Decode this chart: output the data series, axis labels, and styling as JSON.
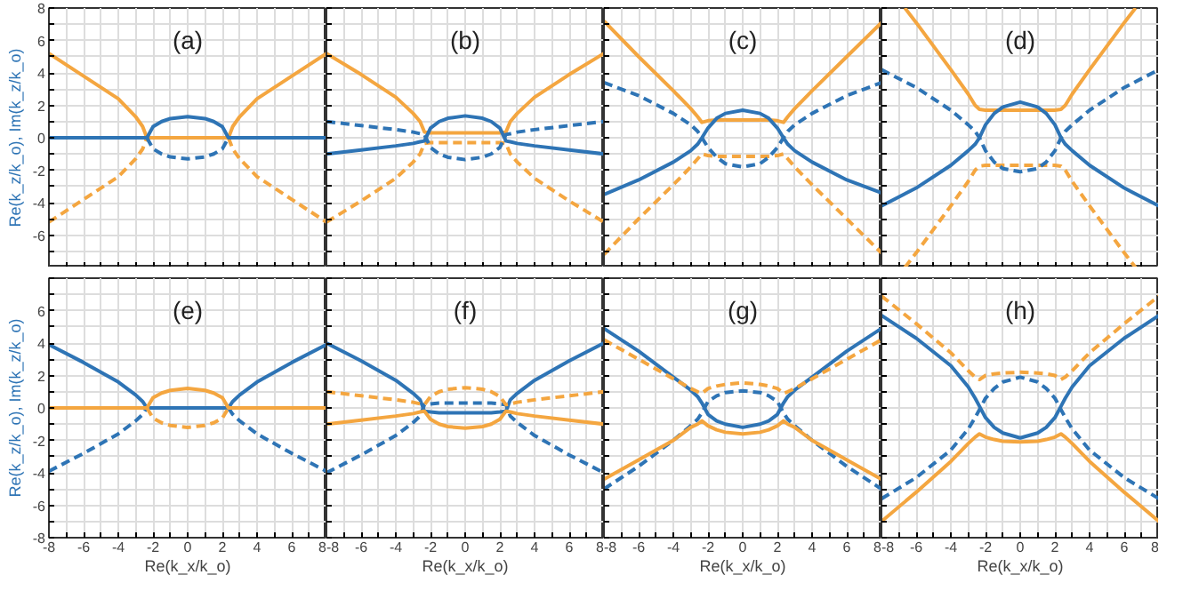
{
  "chart_data": [
    {
      "type": "line",
      "title": "(a)",
      "ylabel": "Re(k_z/k_o), Im(k_z/k_o)",
      "tick_labels": "y",
      "grid": true,
      "xlim": [
        -8,
        8
      ],
      "ylim": [
        -8,
        8
      ],
      "xticks": [
        -8,
        {
          "value": -7,
          "label": null
        },
        -6,
        {
          "value": -5,
          "label": null
        },
        -4,
        {
          "value": -3,
          "label": null
        },
        -2,
        {
          "value": -1,
          "label": null
        },
        0,
        {
          "value": 1,
          "label": null
        },
        2,
        {
          "value": 3,
          "label": null
        },
        4,
        {
          "value": 5,
          "label": null
        },
        6,
        {
          "value": 7,
          "label": null
        },
        8
      ],
      "yticks": [
        {
          "value": -8,
          "label": null
        },
        {
          "value": -7,
          "label": null
        },
        -6,
        {
          "value": -5,
          "label": null
        },
        -4,
        {
          "value": -3,
          "label": null
        },
        -2,
        {
          "value": -1,
          "label": null
        },
        0,
        {
          "value": 1,
          "label": null
        },
        2,
        {
          "value": 3,
          "label": null
        },
        4,
        {
          "value": 5,
          "label": null
        },
        6,
        {
          "value": 7,
          "label": null
        },
        8
      ],
      "x": [
        -8,
        -6,
        -4,
        -3,
        -2.6,
        -2.35,
        -2,
        -1.5,
        -1,
        0,
        1,
        1.5,
        2,
        2.35,
        2.6,
        3,
        4,
        6,
        8
      ],
      "series": [
        {
          "color": "#f4a640",
          "line_style": "solid",
          "values": [
            5.2,
            3.8,
            2.4,
            1.3,
            0.7,
            0,
            0,
            0,
            0,
            0,
            0,
            0,
            0,
            0,
            0.7,
            1.3,
            2.4,
            3.8,
            5.2
          ]
        },
        {
          "color": "#f4a640",
          "line_style": "dashed",
          "values": [
            -5.2,
            -3.8,
            -2.4,
            -1.3,
            -0.7,
            0,
            null,
            null,
            null,
            null,
            null,
            null,
            null,
            0,
            -0.7,
            -1.3,
            -2.4,
            -3.8,
            -5.2
          ]
        },
        {
          "color": "#2e74b5",
          "line_style": "solid",
          "values": [
            0,
            0,
            0,
            0,
            0,
            0,
            0.68,
            1.0,
            1.18,
            1.3,
            1.18,
            1.0,
            0.68,
            0,
            0,
            0,
            0,
            0,
            0
          ]
        },
        {
          "color": "#2e74b5",
          "line_style": "dashed",
          "values": [
            null,
            null,
            null,
            null,
            null,
            0,
            -0.68,
            -1.0,
            -1.18,
            -1.3,
            -1.18,
            -1.0,
            -0.68,
            0,
            null,
            null,
            null,
            null,
            null
          ]
        }
      ]
    },
    {
      "type": "line",
      "title": "(b)",
      "tick_labels": false,
      "grid": true,
      "xlim": [
        -8,
        8
      ],
      "ylim": [
        -8,
        8
      ],
      "xticks": [
        -8,
        {
          "value": -7,
          "label": null
        },
        -6,
        {
          "value": -5,
          "label": null
        },
        -4,
        {
          "value": -3,
          "label": null
        },
        -2,
        {
          "value": -1,
          "label": null
        },
        0,
        {
          "value": 1,
          "label": null
        },
        2,
        {
          "value": 3,
          "label": null
        },
        4,
        {
          "value": 5,
          "label": null
        },
        6,
        {
          "value": 7,
          "label": null
        },
        8
      ],
      "yticks": [
        -8,
        {
          "value": -7,
          "label": null
        },
        -6,
        {
          "value": -5,
          "label": null
        },
        -4,
        {
          "value": -3,
          "label": null
        },
        -2,
        {
          "value": -1,
          "label": null
        },
        0,
        {
          "value": 1,
          "label": null
        },
        2,
        {
          "value": 3,
          "label": null
        },
        4,
        {
          "value": 5,
          "label": null
        },
        6,
        {
          "value": 7,
          "label": null
        },
        8
      ],
      "x": [
        -8,
        -6,
        -4,
        -3,
        -2.6,
        -2.35,
        -2,
        -1.5,
        -1,
        0,
        1,
        1.5,
        2,
        2.35,
        2.6,
        3,
        4,
        6,
        8
      ],
      "series": [
        {
          "color": "#f4a640",
          "line_style": "solid",
          "values": [
            5.2,
            3.9,
            2.5,
            1.5,
            1.0,
            0.35,
            0.3,
            0.3,
            0.3,
            0.3,
            0.3,
            0.3,
            0.3,
            0.35,
            1.0,
            1.5,
            2.5,
            3.9,
            5.2
          ]
        },
        {
          "color": "#f4a640",
          "line_style": "dashed",
          "values": [
            -5.2,
            -3.9,
            -2.5,
            -1.5,
            -1.0,
            -0.35,
            -0.3,
            -0.3,
            -0.3,
            -0.3,
            -0.3,
            -0.3,
            -0.3,
            -0.35,
            -1.0,
            -1.5,
            -2.5,
            -3.9,
            -5.2
          ]
        },
        {
          "color": "#2e74b5",
          "line_style": "solid",
          "values": [
            -1.0,
            -0.75,
            -0.5,
            -0.35,
            -0.25,
            -0.2,
            0.6,
            1.0,
            1.2,
            1.35,
            1.2,
            1.0,
            0.6,
            -0.2,
            -0.25,
            -0.35,
            -0.5,
            -0.75,
            -1.0
          ]
        },
        {
          "color": "#2e74b5",
          "line_style": "dashed",
          "values": [
            1.0,
            0.75,
            0.5,
            0.35,
            0.25,
            0.2,
            -0.6,
            -1.0,
            -1.2,
            -1.35,
            -1.2,
            -1.0,
            -0.6,
            0.2,
            0.25,
            0.35,
            0.5,
            0.75,
            1.0
          ]
        }
      ]
    },
    {
      "type": "line",
      "title": "(c)",
      "tick_labels": false,
      "grid": true,
      "xlim": [
        -8,
        8
      ],
      "ylim": [
        -8,
        8
      ],
      "xticks": [
        -8,
        {
          "value": -7,
          "label": null
        },
        -6,
        {
          "value": -5,
          "label": null
        },
        -4,
        {
          "value": -3,
          "label": null
        },
        -2,
        {
          "value": -1,
          "label": null
        },
        0,
        {
          "value": 1,
          "label": null
        },
        2,
        {
          "value": 3,
          "label": null
        },
        4,
        {
          "value": 5,
          "label": null
        },
        6,
        {
          "value": 7,
          "label": null
        },
        8
      ],
      "yticks": [
        -8,
        {
          "value": -7,
          "label": null
        },
        -6,
        {
          "value": -5,
          "label": null
        },
        -4,
        {
          "value": -3,
          "label": null
        },
        -2,
        {
          "value": -1,
          "label": null
        },
        0,
        {
          "value": 1,
          "label": null
        },
        2,
        {
          "value": 3,
          "label": null
        },
        4,
        {
          "value": 5,
          "label": null
        },
        6,
        {
          "value": 7,
          "label": null
        },
        8
      ],
      "x": [
        -8,
        -6,
        -4,
        -3,
        -2.6,
        -2.35,
        -2,
        -1.5,
        -1,
        0,
        1,
        1.5,
        2,
        2.35,
        2.6,
        3,
        4,
        6,
        8
      ],
      "series": [
        {
          "color": "#f4a640",
          "line_style": "solid",
          "values": [
            7.2,
            5.0,
            2.9,
            1.8,
            1.3,
            0.95,
            1.05,
            1.1,
            1.1,
            1.1,
            1.1,
            1.1,
            1.05,
            0.95,
            1.3,
            1.8,
            2.9,
            5.0,
            7.1
          ]
        },
        {
          "color": "#f4a640",
          "line_style": "dashed",
          "values": [
            -7.2,
            -5.0,
            -2.9,
            -1.8,
            -1.3,
            -1.0,
            -1.1,
            -1.15,
            -1.15,
            -1.15,
            -1.15,
            -1.15,
            -1.1,
            -1.0,
            -1.3,
            -1.8,
            -2.9,
            -5.0,
            -7.1
          ]
        },
        {
          "color": "#2e74b5",
          "line_style": "solid",
          "values": [
            -3.5,
            -2.6,
            -1.5,
            -0.8,
            -0.4,
            0,
            0.6,
            1.2,
            1.5,
            1.7,
            1.5,
            1.2,
            0.6,
            0,
            -0.4,
            -0.8,
            -1.5,
            -2.6,
            -3.4
          ]
        },
        {
          "color": "#2e74b5",
          "line_style": "dashed",
          "values": [
            3.4,
            2.6,
            1.5,
            0.8,
            0.4,
            0,
            -0.6,
            -1.2,
            -1.6,
            -1.8,
            -1.6,
            -1.2,
            -0.6,
            0,
            0.4,
            0.8,
            1.5,
            2.6,
            3.4
          ]
        }
      ]
    },
    {
      "type": "line",
      "title": "(d)",
      "tick_labels": false,
      "grid": true,
      "xlim": [
        -8,
        8
      ],
      "ylim": [
        -8,
        8
      ],
      "xticks": [
        -8,
        {
          "value": -7,
          "label": null
        },
        -6,
        {
          "value": -5,
          "label": null
        },
        -4,
        {
          "value": -3,
          "label": null
        },
        -2,
        {
          "value": -1,
          "label": null
        },
        0,
        {
          "value": 1,
          "label": null
        },
        2,
        {
          "value": 3,
          "label": null
        },
        4,
        {
          "value": 5,
          "label": null
        },
        6,
        {
          "value": 7,
          "label": null
        },
        8
      ],
      "yticks": [
        -8,
        {
          "value": -7,
          "label": null
        },
        -6,
        {
          "value": -5,
          "label": null
        },
        -4,
        {
          "value": -3,
          "label": null
        },
        -2,
        {
          "value": -1,
          "label": null
        },
        0,
        {
          "value": 1,
          "label": null
        },
        2,
        {
          "value": 3,
          "label": null
        },
        4,
        {
          "value": 5,
          "label": null
        },
        6,
        {
          "value": 7,
          "label": null
        },
        8
      ],
      "x": [
        -8,
        -6,
        -4,
        -3,
        -2.6,
        -2.35,
        -2,
        -1.5,
        -1,
        0,
        1,
        1.5,
        2,
        2.35,
        2.6,
        3,
        4,
        6,
        8
      ],
      "series": [
        {
          "color": "#f4a640",
          "line_style": "solid",
          "x": [
            -6.65,
            -6,
            -4,
            -3,
            -2.6,
            -2.35,
            -2,
            0,
            2,
            2.35,
            2.6,
            3,
            4,
            6,
            6.65
          ],
          "values": [
            8,
            7.1,
            4.2,
            2.7,
            2.0,
            1.75,
            1.7,
            1.7,
            1.7,
            1.75,
            2.0,
            2.7,
            4.2,
            7.1,
            8
          ]
        },
        {
          "color": "#f4a640",
          "line_style": "dashed",
          "x": [
            -6.65,
            -6,
            -4,
            -3,
            -2.6,
            -2.35,
            -2,
            0,
            2,
            2.35,
            2.6,
            3,
            4,
            6,
            6.65
          ],
          "values": [
            -8,
            -7.1,
            -4.2,
            -2.7,
            -2.0,
            -1.75,
            -1.7,
            -1.7,
            -1.7,
            -1.75,
            -2.0,
            -2.7,
            -4.2,
            -7.1,
            -8
          ]
        },
        {
          "color": "#2e74b5",
          "line_style": "solid",
          "values": [
            -4.2,
            -3.1,
            -1.7,
            -0.8,
            -0.4,
            0,
            0.8,
            1.5,
            1.9,
            2.2,
            1.9,
            1.5,
            0.8,
            0,
            -0.4,
            -0.8,
            -1.7,
            -3.1,
            -4.2
          ]
        },
        {
          "color": "#2e74b5",
          "line_style": "dashed",
          "values": [
            4.2,
            3.1,
            1.7,
            0.8,
            0.4,
            0,
            -0.8,
            -1.5,
            -1.9,
            -2.1,
            -1.9,
            -1.5,
            -0.8,
            0,
            0.4,
            0.8,
            1.7,
            3.1,
            4.2
          ]
        }
      ]
    },
    {
      "type": "line",
      "title": "(e)",
      "xlabel": "Re(k_x/k_o)",
      "ylabel": "Re(k_z/k_o), Im(k_z/k_o)",
      "grid": true,
      "xlim": [
        -8,
        8
      ],
      "ylim": [
        -8,
        8
      ],
      "xticks": [
        -8,
        {
          "value": -7,
          "label": null
        },
        -6,
        {
          "value": -5,
          "label": null
        },
        -4,
        {
          "value": -3,
          "label": null
        },
        -2,
        {
          "value": -1,
          "label": null
        },
        0,
        {
          "value": 1,
          "label": null
        },
        2,
        {
          "value": 3,
          "label": null
        },
        4,
        {
          "value": 5,
          "label": null
        },
        6,
        {
          "value": 7,
          "label": null
        },
        8
      ],
      "yticks": [
        -8,
        {
          "value": -7,
          "label": null
        },
        -6,
        {
          "value": -5,
          "label": null
        },
        -4,
        {
          "value": -3,
          "label": null
        },
        -2,
        {
          "value": -1,
          "label": null
        },
        0,
        {
          "value": 1,
          "label": null
        },
        2,
        {
          "value": 3,
          "label": null
        },
        4,
        {
          "value": 5,
          "label": null
        },
        6,
        {
          "value": 7,
          "label": null
        },
        {
          "value": 8,
          "label": null
        }
      ],
      "x": [
        -8,
        -6,
        -4,
        -3,
        -2.6,
        -2.35,
        -2,
        -1.5,
        -1,
        0,
        1,
        1.5,
        2,
        2.35,
        2.6,
        3,
        4,
        6,
        8
      ],
      "series": [
        {
          "color": "#2e74b5",
          "line_style": "solid",
          "values": [
            3.9,
            2.8,
            1.6,
            0.8,
            0.4,
            0,
            0,
            0,
            0,
            0,
            0,
            0,
            0,
            0,
            0.4,
            0.8,
            1.6,
            2.8,
            3.9
          ]
        },
        {
          "color": "#2e74b5",
          "line_style": "dashed",
          "values": [
            -3.9,
            -2.8,
            -1.6,
            -0.8,
            -0.4,
            0,
            null,
            null,
            null,
            null,
            null,
            null,
            null,
            0,
            -0.4,
            -0.8,
            -1.6,
            -2.8,
            -3.9
          ]
        },
        {
          "color": "#f4a640",
          "line_style": "solid",
          "values": [
            0,
            0,
            0,
            0,
            0,
            0,
            0.63,
            0.92,
            1.08,
            1.2,
            1.08,
            0.92,
            0.63,
            0,
            0,
            0,
            0,
            0,
            0
          ]
        },
        {
          "color": "#f4a640",
          "line_style": "dashed",
          "values": [
            null,
            null,
            null,
            null,
            null,
            0,
            -0.63,
            -0.92,
            -1.08,
            -1.2,
            -1.08,
            -0.92,
            -0.63,
            0,
            null,
            null,
            null,
            null,
            null
          ]
        }
      ]
    },
    {
      "type": "line",
      "title": "(f)",
      "xlabel": "Re(k_x/k_o)",
      "tick_labels": "x",
      "grid": true,
      "xlim": [
        -8,
        8
      ],
      "ylim": [
        -8,
        8
      ],
      "xticks": [
        -8,
        {
          "value": -7,
          "label": null
        },
        -6,
        {
          "value": -5,
          "label": null
        },
        -4,
        {
          "value": -3,
          "label": null
        },
        -2,
        {
          "value": -1,
          "label": null
        },
        0,
        {
          "value": 1,
          "label": null
        },
        2,
        {
          "value": 3,
          "label": null
        },
        4,
        {
          "value": 5,
          "label": null
        },
        6,
        {
          "value": 7,
          "label": null
        },
        8
      ],
      "yticks": [
        -8,
        {
          "value": -7,
          "label": null
        },
        -6,
        {
          "value": -5,
          "label": null
        },
        -4,
        {
          "value": -3,
          "label": null
        },
        -2,
        {
          "value": -1,
          "label": null
        },
        0,
        {
          "value": 1,
          "label": null
        },
        2,
        {
          "value": 3,
          "label": null
        },
        4,
        {
          "value": 5,
          "label": null
        },
        6,
        {
          "value": 7,
          "label": null
        },
        8
      ],
      "x": [
        -8,
        -6,
        -4,
        -3,
        -2.6,
        -2.35,
        -2,
        -1.5,
        -1,
        0,
        1,
        1.5,
        2,
        2.35,
        2.6,
        3,
        4,
        6,
        8
      ],
      "series": [
        {
          "color": "#2e74b5",
          "line_style": "solid",
          "values": [
            4.0,
            2.9,
            1.7,
            0.9,
            0.5,
            -0.2,
            -0.25,
            -0.3,
            -0.3,
            -0.3,
            -0.3,
            -0.3,
            -0.25,
            -0.2,
            0.5,
            0.9,
            1.7,
            2.9,
            4.0
          ]
        },
        {
          "color": "#2e74b5",
          "line_style": "dashed",
          "values": [
            -4.0,
            -2.9,
            -1.7,
            -0.9,
            -0.5,
            0.2,
            0.25,
            0.3,
            0.3,
            0.3,
            0.3,
            0.3,
            0.25,
            0.2,
            -0.5,
            -0.9,
            -1.7,
            -2.9,
            -4.0
          ]
        },
        {
          "color": "#f4a640",
          "line_style": "solid",
          "values": [
            -1.0,
            -0.75,
            -0.5,
            -0.35,
            -0.25,
            -0.2,
            -0.7,
            -1.0,
            -1.15,
            -1.25,
            -1.15,
            -1.0,
            -0.7,
            -0.2,
            -0.25,
            -0.35,
            -0.5,
            -0.75,
            -1.0
          ]
        },
        {
          "color": "#f4a640",
          "line_style": "dashed",
          "values": [
            1.0,
            0.75,
            0.5,
            0.35,
            0.25,
            0.2,
            0.7,
            1.0,
            1.15,
            1.25,
            1.15,
            1.0,
            0.7,
            0.2,
            0.25,
            0.35,
            0.5,
            0.75,
            1.0
          ]
        }
      ]
    },
    {
      "type": "line",
      "title": "(g)",
      "xlabel": "Re(k_x/k_o)",
      "tick_labels": "x",
      "grid": true,
      "xlim": [
        -8,
        8
      ],
      "ylim": [
        -8,
        8
      ],
      "xticks": [
        -8,
        {
          "value": -7,
          "label": null
        },
        -6,
        {
          "value": -5,
          "label": null
        },
        -4,
        {
          "value": -3,
          "label": null
        },
        -2,
        {
          "value": -1,
          "label": null
        },
        0,
        {
          "value": 1,
          "label": null
        },
        2,
        {
          "value": 3,
          "label": null
        },
        4,
        {
          "value": 5,
          "label": null
        },
        6,
        {
          "value": 7,
          "label": null
        },
        8
      ],
      "yticks": [
        -8,
        {
          "value": -7,
          "label": null
        },
        -6,
        {
          "value": -5,
          "label": null
        },
        -4,
        {
          "value": -3,
          "label": null
        },
        -2,
        {
          "value": -1,
          "label": null
        },
        0,
        {
          "value": 1,
          "label": null
        },
        2,
        {
          "value": 3,
          "label": null
        },
        4,
        {
          "value": 5,
          "label": null
        },
        6,
        {
          "value": 7,
          "label": null
        },
        8
      ],
      "x": [
        -8,
        -6,
        -4,
        -3,
        -2.6,
        -2.35,
        -2,
        -1.5,
        -1,
        0,
        1,
        1.5,
        2,
        2.35,
        2.6,
        3,
        4,
        6,
        8
      ],
      "series": [
        {
          "color": "#2e74b5",
          "line_style": "solid",
          "values": [
            4.9,
            3.5,
            1.9,
            1.1,
            0.7,
            0.3,
            -0.4,
            -0.8,
            -1.0,
            -1.2,
            -1.0,
            -0.8,
            -0.4,
            0.3,
            0.7,
            1.1,
            1.9,
            3.5,
            4.9
          ]
        },
        {
          "color": "#2e74b5",
          "line_style": "dashed",
          "values": [
            -5.0,
            -3.6,
            -2.0,
            -1.1,
            -0.7,
            -0.3,
            0.4,
            0.75,
            0.95,
            1.05,
            0.95,
            0.75,
            0.4,
            -0.3,
            -0.7,
            -1.1,
            -2.0,
            -3.6,
            -5.0
          ]
        },
        {
          "color": "#f4a640",
          "line_style": "dashed",
          "values": [
            4.2,
            3.0,
            1.8,
            1.2,
            1.0,
            0.9,
            1.2,
            1.35,
            1.45,
            1.55,
            1.45,
            1.35,
            1.2,
            0.9,
            1.0,
            1.2,
            1.8,
            3.0,
            4.2
          ]
        },
        {
          "color": "#f4a640",
          "line_style": "solid",
          "values": [
            -4.4,
            -3.2,
            -2.0,
            -1.2,
            -1.0,
            -0.8,
            -1.1,
            -1.35,
            -1.5,
            -1.6,
            -1.5,
            -1.35,
            -1.1,
            -0.8,
            -1.0,
            -1.2,
            -2.0,
            -3.2,
            -4.4
          ]
        }
      ]
    },
    {
      "type": "line",
      "title": "(h)",
      "xlabel": "Re(k_x/k_o)",
      "tick_labels": "x",
      "grid": true,
      "xlim": [
        -8,
        8
      ],
      "ylim": [
        -8,
        8
      ],
      "xticks": [
        -8,
        {
          "value": -7,
          "label": null
        },
        -6,
        {
          "value": -5,
          "label": null
        },
        -4,
        {
          "value": -3,
          "label": null
        },
        -2,
        {
          "value": -1,
          "label": null
        },
        0,
        {
          "value": 1,
          "label": null
        },
        2,
        {
          "value": 3,
          "label": null
        },
        4,
        {
          "value": 5,
          "label": null
        },
        6,
        {
          "value": 7,
          "label": null
        },
        8
      ],
      "yticks": [
        -8,
        {
          "value": -7,
          "label": null
        },
        -6,
        {
          "value": -5,
          "label": null
        },
        -4,
        {
          "value": -3,
          "label": null
        },
        -2,
        {
          "value": -1,
          "label": null
        },
        0,
        {
          "value": 1,
          "label": null
        },
        2,
        {
          "value": 3,
          "label": null
        },
        4,
        {
          "value": 5,
          "label": null
        },
        6,
        {
          "value": 7,
          "label": null
        },
        8
      ],
      "x": [
        -8,
        -6,
        -4,
        -3,
        -2.6,
        -2.35,
        -2,
        -1.5,
        -1,
        0,
        1,
        1.5,
        2,
        2.35,
        2.6,
        3,
        4,
        6,
        8
      ],
      "series": [
        {
          "color": "#f4a640",
          "line_style": "dashed",
          "values": [
            6.9,
            5.2,
            3.4,
            2.3,
            1.9,
            1.75,
            2.0,
            2.1,
            2.15,
            2.2,
            2.15,
            2.1,
            2.0,
            1.75,
            1.9,
            2.3,
            3.4,
            5.2,
            6.9
          ]
        },
        {
          "color": "#f4a640",
          "line_style": "solid",
          "values": [
            -7.0,
            -5.2,
            -3.3,
            -2.2,
            -1.8,
            -1.6,
            -1.8,
            -1.95,
            -2.05,
            -2.1,
            -2.05,
            -1.95,
            -1.8,
            -1.6,
            -1.8,
            -2.2,
            -3.3,
            -5.2,
            -7.0
          ]
        },
        {
          "color": "#2e74b5",
          "line_style": "solid",
          "values": [
            5.7,
            4.3,
            2.6,
            1.3,
            0.6,
            0.1,
            -0.6,
            -1.2,
            -1.55,
            -1.85,
            -1.55,
            -1.2,
            -0.6,
            0.1,
            0.6,
            1.3,
            2.6,
            4.3,
            5.7
          ]
        },
        {
          "color": "#2e74b5",
          "line_style": "dashed",
          "values": [
            -5.6,
            -4.3,
            -2.6,
            -1.3,
            -0.6,
            -0.1,
            0.6,
            1.2,
            1.6,
            1.9,
            1.6,
            1.2,
            0.6,
            -0.1,
            -0.6,
            -1.3,
            -2.6,
            -4.3,
            -5.6
          ]
        }
      ]
    }
  ]
}
